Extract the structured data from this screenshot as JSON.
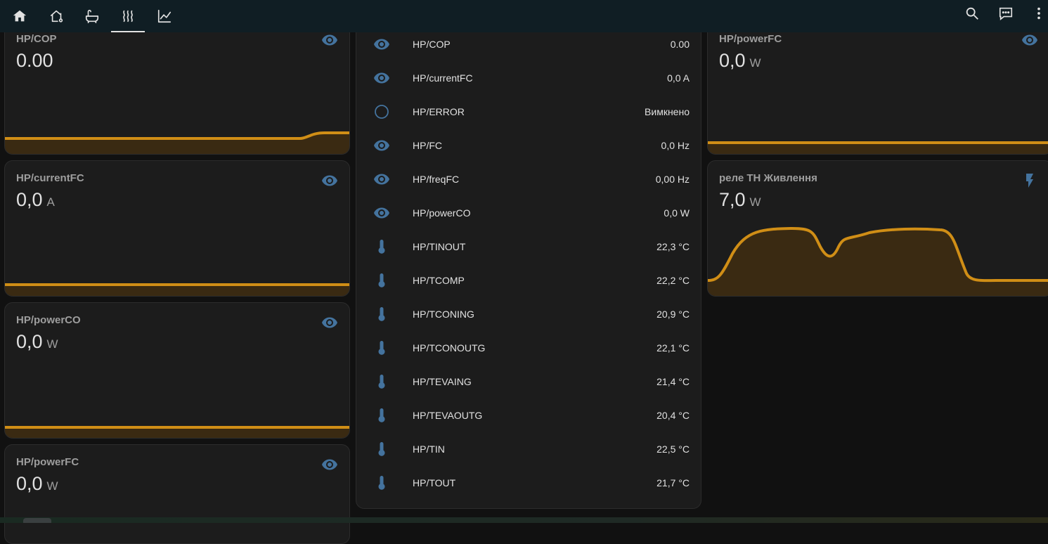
{
  "colors": {
    "accent": "#e1e1e1",
    "graph_line": "#d08e16",
    "graph_fill": "#3a2a12",
    "icon_blue": "#44739e",
    "topbar_bg": "#101e24"
  },
  "header": {
    "tabs": [
      {
        "icon": "home-icon"
      },
      {
        "icon": "home-thermometer-icon"
      },
      {
        "icon": "bathtub-icon"
      },
      {
        "icon": "heat-wave-icon",
        "active": true
      },
      {
        "icon": "chart-line-icon"
      }
    ],
    "actions": [
      {
        "icon": "search-icon"
      },
      {
        "icon": "assist-chat-icon"
      },
      {
        "icon": "more-vert-icon"
      }
    ]
  },
  "cards_left": [
    {
      "name": "HP/COP",
      "value": "0.00",
      "unit": "",
      "icon": "eye-icon"
    },
    {
      "name": "HP/currentFC",
      "value": "0,0",
      "unit": "A",
      "icon": "eye-icon"
    },
    {
      "name": "HP/powerCO",
      "value": "0,0",
      "unit": "W",
      "icon": "eye-icon"
    },
    {
      "name": "HP/powerFC",
      "value": "0,0",
      "unit": "W",
      "icon": "eye-icon"
    }
  ],
  "entities": [
    {
      "name": "HP/COP",
      "state": "0.00",
      "icon": "eye-icon"
    },
    {
      "name": "HP/currentFC",
      "state": "0,0 A",
      "icon": "eye-icon"
    },
    {
      "name": "HP/ERROR",
      "state": "Вимкнено",
      "icon": "circle-outline-icon"
    },
    {
      "name": "HP/FC",
      "state": "0,0 Hz",
      "icon": "eye-icon"
    },
    {
      "name": "HP/freqFC",
      "state": "0,00 Hz",
      "icon": "eye-icon"
    },
    {
      "name": "HP/powerCO",
      "state": "0,0 W",
      "icon": "eye-icon"
    },
    {
      "name": "HP/TINOUT",
      "state": "22,3 °C",
      "icon": "thermometer-icon"
    },
    {
      "name": "HP/TCOMP",
      "state": "22,2 °C",
      "icon": "thermometer-icon"
    },
    {
      "name": "HP/TCONING",
      "state": "20,9 °C",
      "icon": "thermometer-icon"
    },
    {
      "name": "HP/TCONOUTG",
      "state": "22,1 °C",
      "icon": "thermometer-icon"
    },
    {
      "name": "HP/TEVAING",
      "state": "21,4 °C",
      "icon": "thermometer-icon"
    },
    {
      "name": "HP/TEVAOUTG",
      "state": "20,4 °C",
      "icon": "thermometer-icon"
    },
    {
      "name": "HP/TIN",
      "state": "22,5 °C",
      "icon": "thermometer-icon"
    },
    {
      "name": "HP/TOUT",
      "state": "21,7 °C",
      "icon": "thermometer-icon"
    }
  ],
  "cards_right": [
    {
      "name": "HP/powerFC",
      "value": "0,0",
      "unit": "W",
      "icon": "eye-icon"
    },
    {
      "name": "реле ТН Живлення",
      "value": "7,0",
      "unit": "W",
      "icon": "flash-icon"
    }
  ]
}
